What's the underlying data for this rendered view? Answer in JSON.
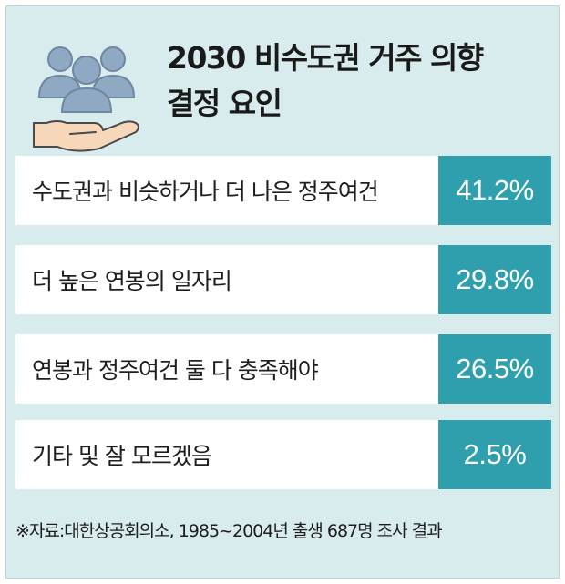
{
  "chart_data": {
    "type": "table",
    "title": [
      "2030 비수도권 거주 의향",
      "결정 요인"
    ],
    "categories": [
      "수도권과 비슷하거나 더 나은 정주여건",
      "더 높은 연봉의 일자리",
      "연봉과 정주여건 둘 다 충족해야",
      "기타 및 잘 모르겠음"
    ],
    "values": [
      41.2,
      29.8,
      26.5,
      2.5
    ],
    "value_labels": [
      "41.2%",
      "29.8%",
      "26.5%",
      "2.5%"
    ],
    "source": "※자료:대한상공회의소, 1985~2004년 출생 687명 조사 결과"
  },
  "icon": "people-in-hand-icon",
  "colors": {
    "background": "#d8ecee",
    "accent": "#2f9fad",
    "icon_people": "#8fa9c4",
    "icon_hand": "#f7d7ba"
  }
}
